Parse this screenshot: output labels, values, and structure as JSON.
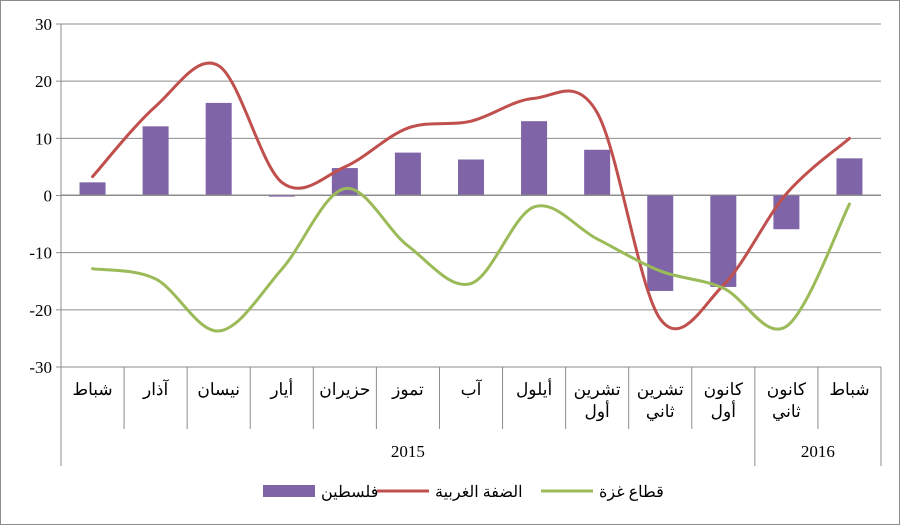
{
  "chart_data": {
    "type": "bar+line",
    "title": "",
    "xlabel": "",
    "ylabel": "",
    "ylim": [
      -30,
      30
    ],
    "yticks": [
      30,
      20,
      10,
      0,
      -10,
      -20,
      -30
    ],
    "grid": true,
    "legend_position": "bottom",
    "categories": [
      [
        "شباط"
      ],
      [
        "آذار"
      ],
      [
        "نيسان"
      ],
      [
        "أيار"
      ],
      [
        "حزيران"
      ],
      [
        "تموز"
      ],
      [
        "آب"
      ],
      [
        "أيلول"
      ],
      [
        "تشرين",
        "أول"
      ],
      [
        "تشرين",
        "ثاني"
      ],
      [
        "كانون",
        "أول"
      ],
      [
        "كانون",
        "ثاني"
      ],
      [
        "شباط"
      ]
    ],
    "year_groups": [
      {
        "label": "2015",
        "count": 11
      },
      {
        "label": "2016",
        "count": 2
      }
    ],
    "series": [
      {
        "name": "فلسطين",
        "type": "bar",
        "color": "#7f64a8",
        "values": [
          2.3,
          12.1,
          16.2,
          -0.2,
          4.8,
          7.5,
          6.3,
          13.0,
          8.0,
          -16.7,
          -16.0,
          -5.9,
          6.5
        ]
      },
      {
        "name": "الضفة الغربية",
        "type": "line",
        "color": "#c0504d",
        "values": [
          3.3,
          15.6,
          22.7,
          2.3,
          5.0,
          11.8,
          13.0,
          17.0,
          14.5,
          -21.6,
          -15.7,
          0.3,
          10.0
        ]
      },
      {
        "name": "قطاع غزة",
        "type": "line",
        "color": "#9bbb59",
        "values": [
          -12.8,
          -14.6,
          -23.7,
          -12.9,
          1.2,
          -8.8,
          -15.4,
          -2.0,
          -7.6,
          -13.2,
          -16.2,
          -22.9,
          -1.5
        ]
      }
    ]
  }
}
